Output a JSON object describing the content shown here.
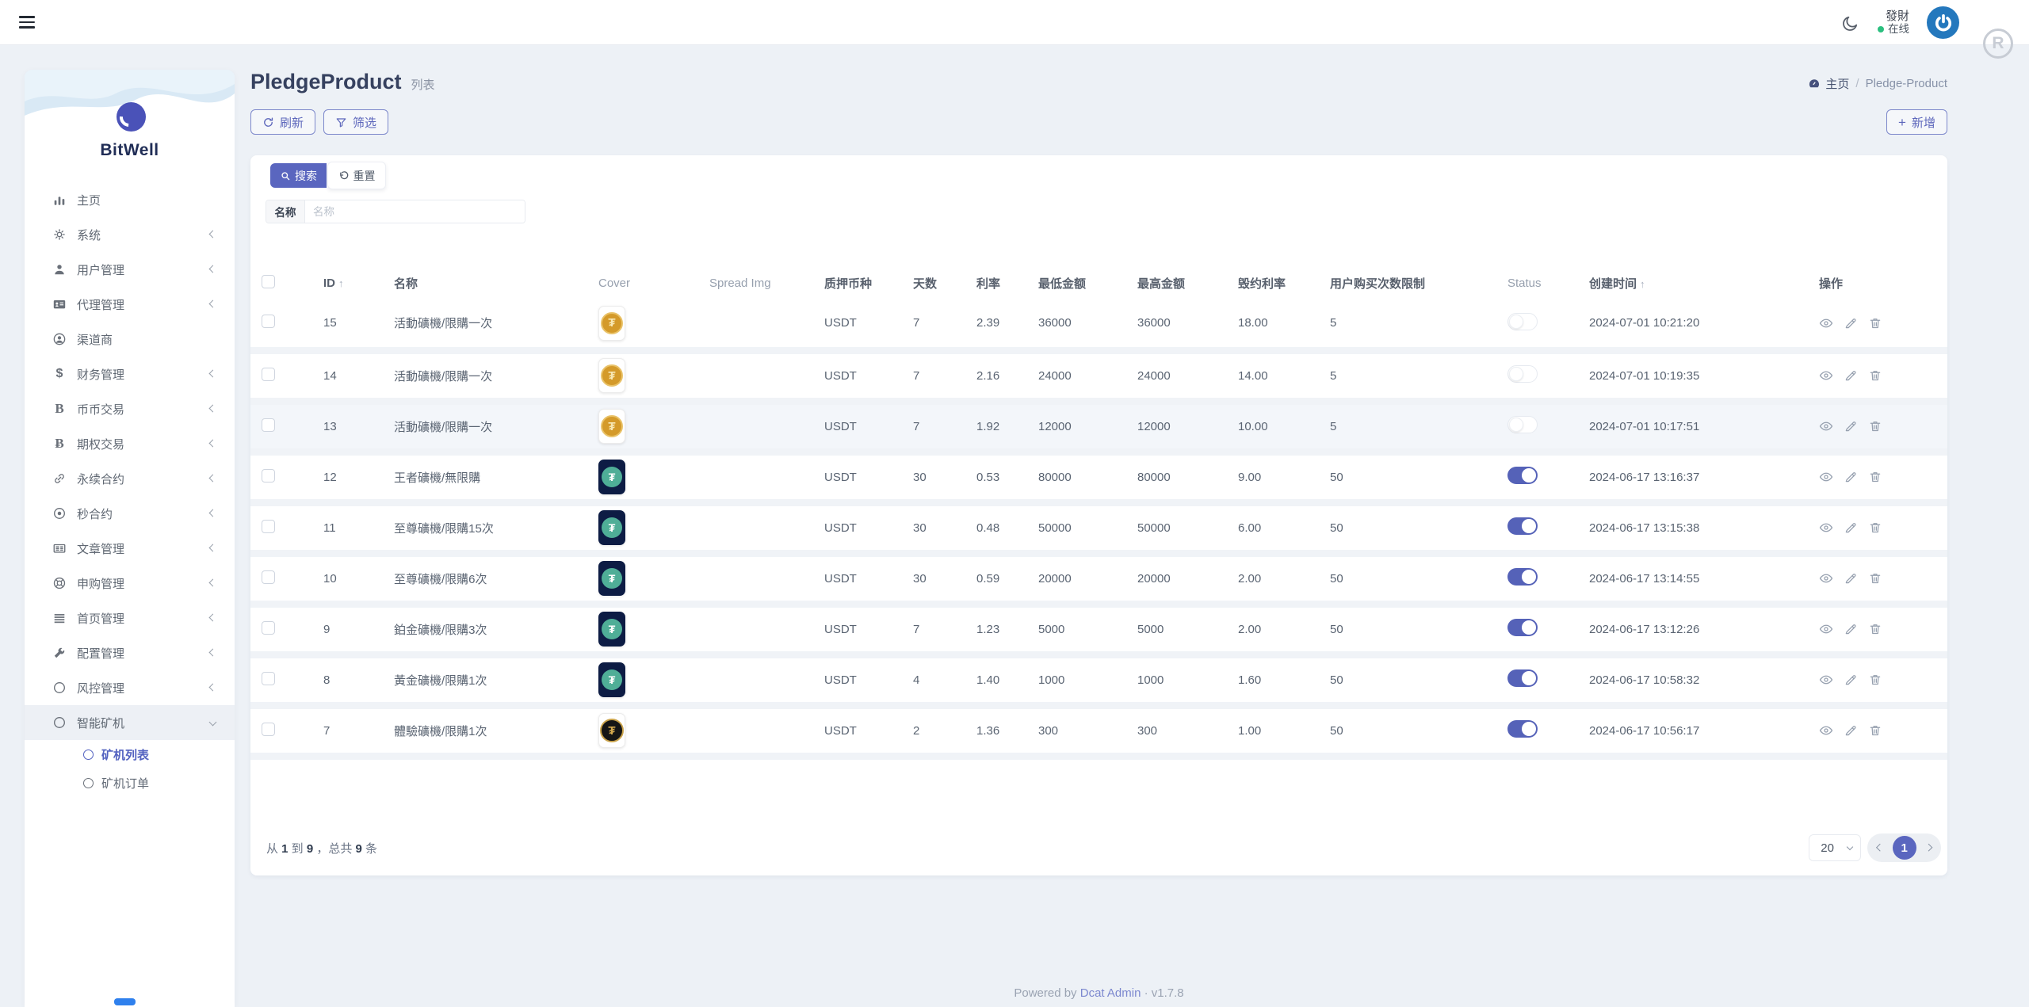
{
  "topbar": {
    "user_name": "發財",
    "user_status": "在线",
    "r_badge": "R"
  },
  "sidebar": {
    "brand": "BitWell",
    "items": [
      {
        "label": "主页",
        "icon": "chart-bar",
        "chevron": "none"
      },
      {
        "label": "系统",
        "icon": "gear",
        "chevron": "left"
      },
      {
        "label": "用户管理",
        "icon": "user",
        "chevron": "left"
      },
      {
        "label": "代理管理",
        "icon": "id-card",
        "chevron": "left"
      },
      {
        "label": "渠道商",
        "icon": "user-circle",
        "chevron": "none"
      },
      {
        "label": "财务管理",
        "icon": "dollar",
        "chevron": "left"
      },
      {
        "label": "币币交易",
        "icon": "bold-b",
        "chevron": "left"
      },
      {
        "label": "期权交易",
        "icon": "bitcoin",
        "chevron": "left"
      },
      {
        "label": "永续合约",
        "icon": "link",
        "chevron": "left"
      },
      {
        "label": "秒合约",
        "icon": "circle-dot",
        "chevron": "left"
      },
      {
        "label": "文章管理",
        "icon": "newspaper",
        "chevron": "left"
      },
      {
        "label": "申购管理",
        "icon": "life-ring",
        "chevron": "left"
      },
      {
        "label": "首页管理",
        "icon": "list",
        "chevron": "left"
      },
      {
        "label": "配置管理",
        "icon": "wrench",
        "chevron": "left"
      },
      {
        "label": "风控管理",
        "icon": "circle",
        "chevron": "left"
      },
      {
        "label": "智能矿机",
        "icon": "circle",
        "chevron": "down",
        "active": true
      }
    ],
    "subitems": [
      {
        "label": "矿机列表",
        "active": true
      },
      {
        "label": "矿机订单",
        "active": false
      }
    ]
  },
  "header": {
    "title": "PledgeProduct",
    "subtitle": "列表",
    "breadcrumb_home": "主页",
    "breadcrumb_current": "Pledge-Product"
  },
  "toolbar": {
    "refresh_label": "刷新",
    "filter_label": "筛选",
    "add_label": "新增"
  },
  "search": {
    "search_label": "搜索",
    "reset_label": "重置",
    "name_label": "名称",
    "name_placeholder": "名称",
    "name_value": ""
  },
  "table": {
    "columns": [
      {
        "label": "ID",
        "sort": true
      },
      {
        "label": "名称"
      },
      {
        "label": "Cover",
        "muted": true
      },
      {
        "label": "Spread Img",
        "muted": true
      },
      {
        "label": "质押币种"
      },
      {
        "label": "天数"
      },
      {
        "label": "利率"
      },
      {
        "label": "最低金额"
      },
      {
        "label": "最高金额"
      },
      {
        "label": "毁约利率"
      },
      {
        "label": "用户购买次数限制"
      },
      {
        "label": "Status",
        "muted": true
      },
      {
        "label": "创建时间",
        "sort": true
      },
      {
        "label": "操作"
      }
    ],
    "sort_indicator": "↑",
    "rows": [
      {
        "id": "15",
        "name": "活動礦機/限購一次",
        "coin": "gold",
        "spread_img": "",
        "currency": "USDT",
        "days": "7",
        "rate": "2.39",
        "min": "36000",
        "max": "36000",
        "penalty": "18.00",
        "limit": "5",
        "status": false,
        "created": "2024-07-01 10:21:20"
      },
      {
        "id": "14",
        "name": "活動礦機/限購一次",
        "coin": "gold",
        "spread_img": "",
        "currency": "USDT",
        "days": "7",
        "rate": "2.16",
        "min": "24000",
        "max": "24000",
        "penalty": "14.00",
        "limit": "5",
        "status": false,
        "created": "2024-07-01 10:19:35"
      },
      {
        "id": "13",
        "name": "活動礦機/限購一次",
        "coin": "gold",
        "spread_img": "",
        "currency": "USDT",
        "days": "7",
        "rate": "1.92",
        "min": "12000",
        "max": "12000",
        "penalty": "10.00",
        "limit": "5",
        "status": false,
        "created": "2024-07-01 10:17:51",
        "highlighted": true
      },
      {
        "id": "12",
        "name": "王者礦機/無限購",
        "coin": "navy-teal",
        "spread_img": "",
        "currency": "USDT",
        "days": "30",
        "rate": "0.53",
        "min": "80000",
        "max": "80000",
        "penalty": "9.00",
        "limit": "50",
        "status": true,
        "created": "2024-06-17 13:16:37"
      },
      {
        "id": "11",
        "name": "至尊礦機/限購15次",
        "coin": "navy-teal",
        "spread_img": "",
        "currency": "USDT",
        "days": "30",
        "rate": "0.48",
        "min": "50000",
        "max": "50000",
        "penalty": "6.00",
        "limit": "50",
        "status": true,
        "created": "2024-06-17 13:15:38"
      },
      {
        "id": "10",
        "name": "至尊礦機/限購6次",
        "coin": "navy-teal",
        "spread_img": "",
        "currency": "USDT",
        "days": "30",
        "rate": "0.59",
        "min": "20000",
        "max": "20000",
        "penalty": "2.00",
        "limit": "50",
        "status": true,
        "created": "2024-06-17 13:14:55"
      },
      {
        "id": "9",
        "name": "鉑金礦機/限購3次",
        "coin": "navy-teal",
        "spread_img": "",
        "currency": "USDT",
        "days": "7",
        "rate": "1.23",
        "min": "5000",
        "max": "5000",
        "penalty": "2.00",
        "limit": "50",
        "status": true,
        "created": "2024-06-17 13:12:26"
      },
      {
        "id": "8",
        "name": "黃金礦機/限購1次",
        "coin": "navy-teal",
        "spread_img": "",
        "currency": "USDT",
        "days": "4",
        "rate": "1.40",
        "min": "1000",
        "max": "1000",
        "penalty": "1.60",
        "limit": "50",
        "status": true,
        "created": "2024-06-17 10:58:32"
      },
      {
        "id": "7",
        "name": "體驗礦機/限購1次",
        "coin": "black-gold",
        "spread_img": "",
        "currency": "USDT",
        "days": "2",
        "rate": "1.36",
        "min": "300",
        "max": "300",
        "penalty": "1.00",
        "limit": "50",
        "status": true,
        "created": "2024-06-17 10:56:17"
      }
    ],
    "coin_symbol": "₮"
  },
  "footer": {
    "summary_parts": [
      {
        "text": "从 "
      },
      {
        "text": "1",
        "bold": true
      },
      {
        "text": " 到 "
      },
      {
        "text": "9",
        "bold": true
      },
      {
        "text": " ，总共 "
      },
      {
        "text": "9",
        "bold": true
      },
      {
        "text": " 条"
      }
    ],
    "per_page": "20",
    "active_page": "1"
  },
  "powered": {
    "prefix": "Powered by ",
    "link": "Dcat Admin",
    "suffix": " · v1.7.8"
  },
  "colors": {
    "primary": "#5a66bf",
    "toggle_on": "#5562b8",
    "online_green": "#2bbf7f",
    "avatar_blue": "#2478bd",
    "sidebar_active": "#5362c0",
    "coin_gold": "#d49a2a",
    "coin_teal": "#4fae97",
    "coin_card_navy": "#0d1c44"
  }
}
